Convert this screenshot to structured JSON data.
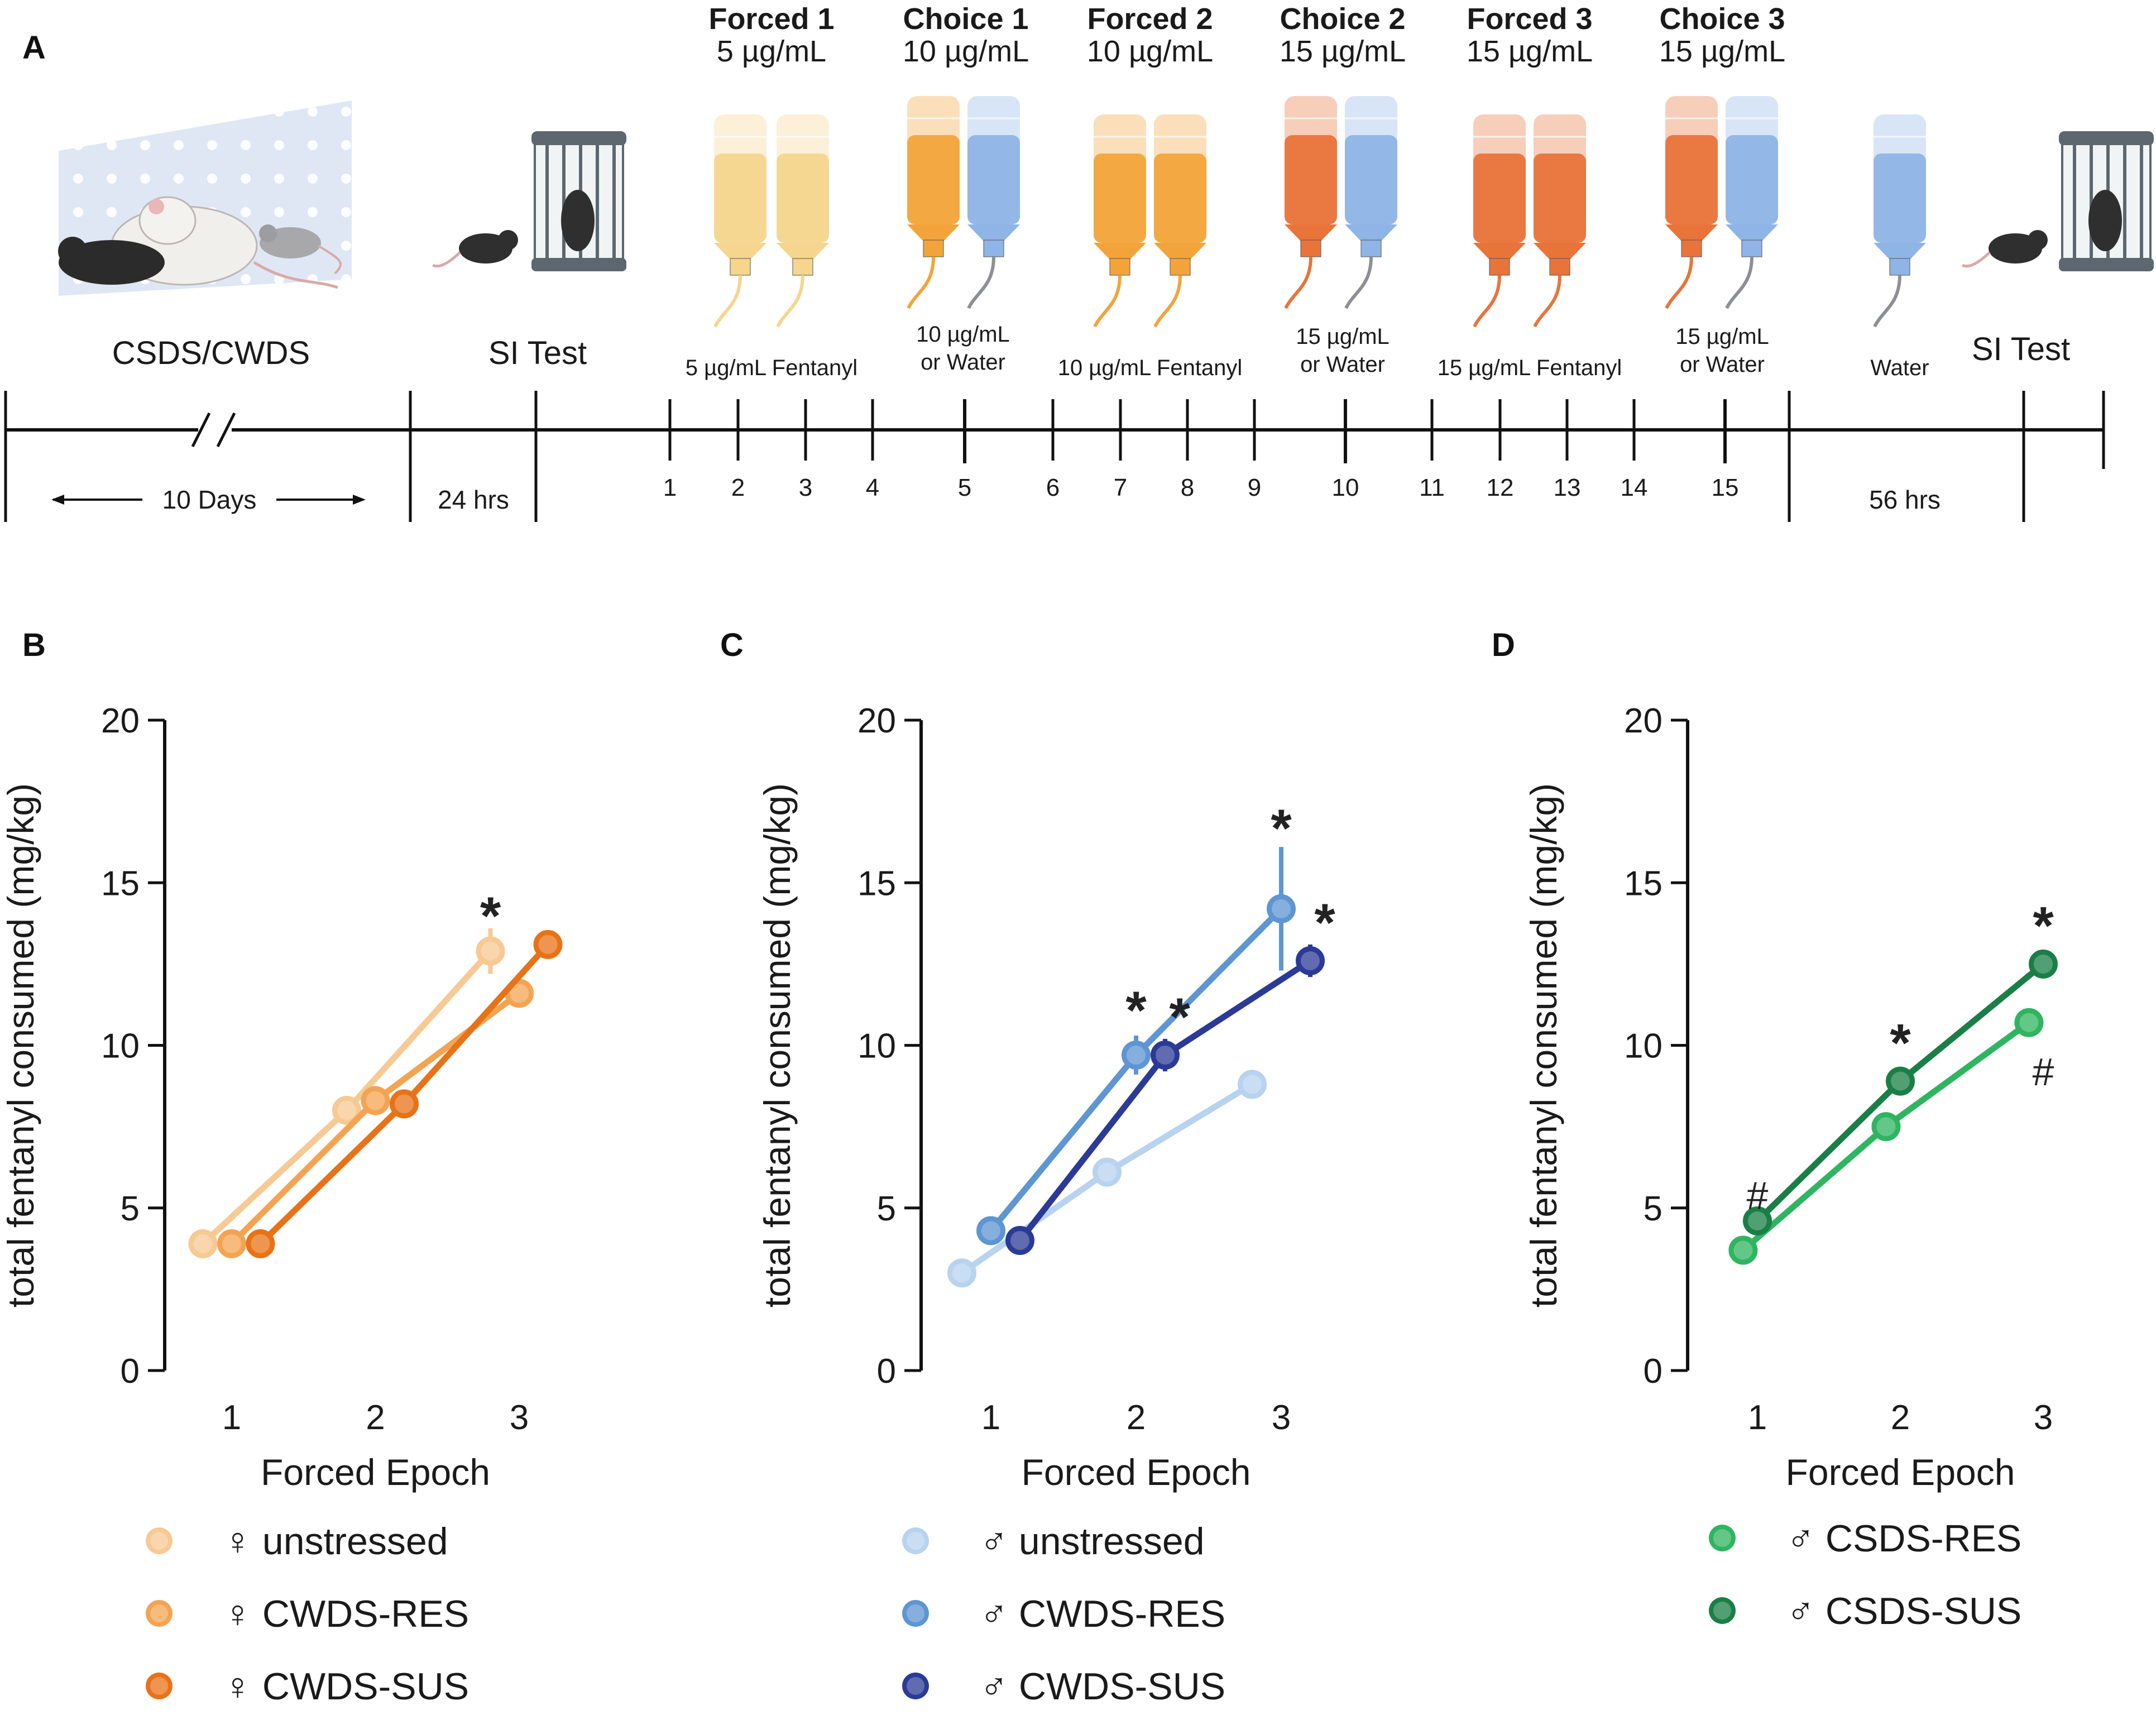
{
  "figure": {
    "panel_letters": {
      "A": "A",
      "B": "B",
      "C": "C",
      "D": "D"
    },
    "timeline": {
      "headers": [
        {
          "title": "Forced 1",
          "conc": "5 µg/mL"
        },
        {
          "title": "Choice 1",
          "conc": "10 µg/mL"
        },
        {
          "title": "Forced 2",
          "conc": "10 µg/mL"
        },
        {
          "title": "Choice 2",
          "conc": "15 µg/mL"
        },
        {
          "title": "Forced 3",
          "conc": "15 µg/mL"
        },
        {
          "title": "Choice 3",
          "conc": "15 µg/mL"
        }
      ],
      "bottle_labels": {
        "forced1": "5 µg/mL Fentanyl",
        "choice1_l1": "10 µg/mL",
        "choice1_l2": "or Water",
        "forced2": "10 µg/mL Fentanyl",
        "choice2_l1": "15 µg/mL",
        "choice2_l2": "or Water",
        "forced3": "15 µg/mL Fentanyl",
        "choice3_l1": "15 µg/mL",
        "choice3_l2": "or Water",
        "water": "Water"
      },
      "stages": {
        "csds": "CSDS/CWDS",
        "si_test_1": "SI Test",
        "si_test_2": "SI Test"
      },
      "durations": {
        "ten_days": "10 Days",
        "h24": "24 hrs",
        "h56": "56 hrs"
      },
      "days": [
        "1",
        "2",
        "3",
        "4",
        "5",
        "6",
        "7",
        "8",
        "9",
        "10",
        "11",
        "12",
        "13",
        "14",
        "15"
      ],
      "colors": {
        "fent5": "#f6d58e",
        "fent10": "#f2a43a",
        "fent15": "#e8743a",
        "water": "#8fb4e6",
        "cage": "#5c6770"
      }
    }
  },
  "chart_data": [
    {
      "panel": "B",
      "type": "line",
      "xlabel": "Forced Epoch",
      "ylabel": "total fentanyl consumed (mg/kg)",
      "categories": [
        "1",
        "2",
        "3"
      ],
      "yticks": [
        "0",
        "5",
        "10",
        "15",
        "20"
      ],
      "ylim": [
        0,
        20
      ],
      "series": [
        {
          "name": "♀ unstressed",
          "color": "#f7c993",
          "x": [
            0.8,
            1.8,
            2.8
          ],
          "values": [
            3.9,
            8.0,
            12.9
          ],
          "err": [
            0.15,
            0.3,
            0.7
          ]
        },
        {
          "name": "♀ CWDS-RES",
          "color": "#f3a452",
          "x": [
            1.0,
            2.0,
            3.0
          ],
          "values": [
            3.9,
            8.3,
            11.6
          ],
          "err": [
            0.15,
            0.3,
            0.4
          ]
        },
        {
          "name": "♀ CWDS-SUS",
          "color": "#e87217",
          "x": [
            1.2,
            2.2,
            3.2
          ],
          "values": [
            3.9,
            8.2,
            13.1
          ],
          "err": [
            0.1,
            0.2,
            0.3
          ]
        }
      ],
      "annotations": [
        {
          "text": "*",
          "x": 2.8,
          "y": 14.1,
          "kind": "star"
        }
      ]
    },
    {
      "panel": "C",
      "type": "line",
      "xlabel": "Forced Epoch",
      "ylabel": "total fentanyl consumed (mg/kg)",
      "categories": [
        "1",
        "2",
        "3"
      ],
      "yticks": [
        "0",
        "5",
        "10",
        "15",
        "20"
      ],
      "ylim": [
        0,
        20
      ],
      "series": [
        {
          "name": "♂ unstressed",
          "color": "#b7d3ef",
          "x": [
            0.8,
            1.8,
            2.8
          ],
          "values": [
            3.0,
            6.1,
            8.8
          ],
          "err": [
            0.1,
            0.2,
            0.3
          ]
        },
        {
          "name": "♂ CWDS-RES",
          "color": "#5e95d3",
          "x": [
            1.0,
            2.0,
            3.0
          ],
          "values": [
            4.3,
            9.7,
            14.2
          ],
          "err": [
            0.2,
            0.6,
            1.9
          ]
        },
        {
          "name": "♂ CWDS-SUS",
          "color": "#2b3a96",
          "x": [
            1.2,
            2.2,
            3.2
          ],
          "values": [
            4.0,
            9.7,
            12.6
          ],
          "err": [
            0.15,
            0.5,
            0.5
          ]
        }
      ],
      "annotations": [
        {
          "text": "*",
          "x": 2.0,
          "y": 11.2,
          "kind": "star"
        },
        {
          "text": "*",
          "x": 2.3,
          "y": 11.0,
          "kind": "star"
        },
        {
          "text": "*",
          "x": 3.0,
          "y": 16.8,
          "kind": "star"
        },
        {
          "text": "*",
          "x": 3.3,
          "y": 13.9,
          "kind": "star"
        }
      ]
    },
    {
      "panel": "D",
      "type": "line",
      "xlabel": "Forced Epoch",
      "ylabel": "total fentanyl consumed (mg/kg)",
      "categories": [
        "1",
        "2",
        "3"
      ],
      "yticks": [
        "0",
        "5",
        "10",
        "15",
        "20"
      ],
      "ylim": [
        0,
        20
      ],
      "series": [
        {
          "name": "♂ CSDS-RES",
          "color": "#2fb561",
          "x": [
            0.9,
            1.9,
            2.9
          ],
          "values": [
            3.7,
            7.5,
            10.7
          ],
          "err": [
            0.1,
            0.3,
            0.4
          ]
        },
        {
          "name": "♂ CSDS-SUS",
          "color": "#197f46",
          "x": [
            1.0,
            2.0,
            3.0
          ],
          "values": [
            4.6,
            8.9,
            12.5
          ],
          "err": [
            0.15,
            0.3,
            0.3
          ]
        }
      ],
      "annotations": [
        {
          "text": "#",
          "x": 1.0,
          "y": 5.4,
          "kind": "hash"
        },
        {
          "text": "*",
          "x": 2.0,
          "y": 10.2,
          "kind": "star"
        },
        {
          "text": "*",
          "x": 3.0,
          "y": 13.8,
          "kind": "star"
        },
        {
          "text": "#",
          "x": 3.0,
          "y": 9.2,
          "kind": "hash"
        }
      ]
    }
  ]
}
